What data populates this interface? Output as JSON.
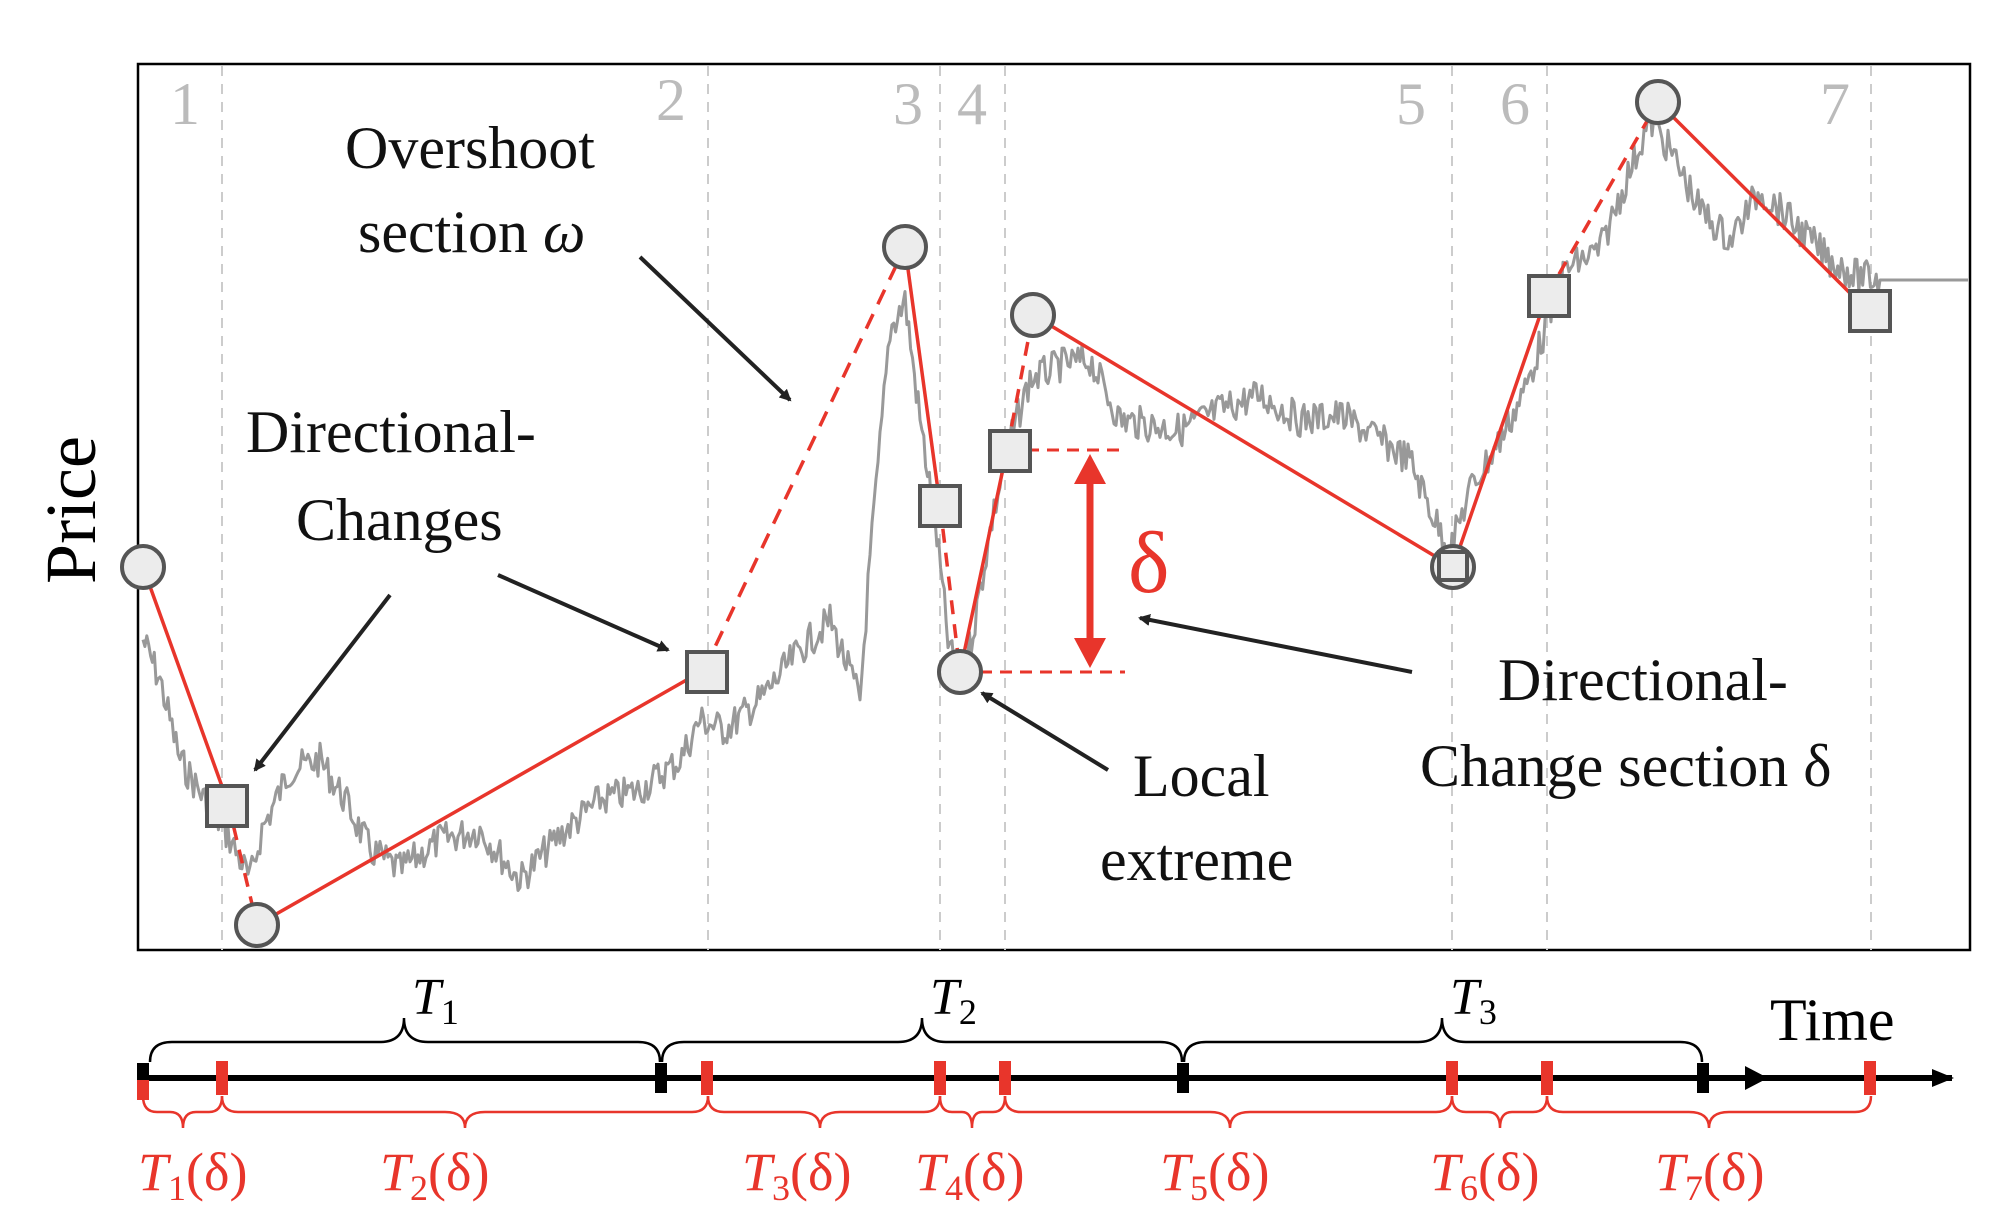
{
  "axis": {
    "y_label": "Price",
    "x_label": "Time"
  },
  "events": {
    "numbers": [
      "1",
      "2",
      "3",
      "4",
      "5",
      "6",
      "7"
    ],
    "delta_labels": [
      "T1(δ)",
      "T2(δ)",
      "T3(δ)",
      "T4(δ)",
      "T5(δ)",
      "T6(δ)",
      "T7(δ)"
    ]
  },
  "periods": [
    "T1",
    "T2",
    "T3"
  ],
  "symbols": {
    "delta": "δ",
    "delta_parens": "(δ)"
  },
  "annotations": {
    "overshoot_line1": "Overshoot",
    "overshoot_line2": "section",
    "overshoot_symbol": "ω",
    "dc_line1": "Directional-",
    "dc_line2": "Changes",
    "dc_section_line1": "Directional-",
    "dc_section_line2": "Change section δ",
    "local_line1": "Local",
    "local_line2": "extreme"
  },
  "colors": {
    "red": "#e8352b",
    "price": "#999999",
    "marker_fill": "#ececec",
    "marker_stroke": "#555555",
    "event_number": "#bbbbbb",
    "grid": "#cccccc",
    "arrow": "#222222"
  }
}
